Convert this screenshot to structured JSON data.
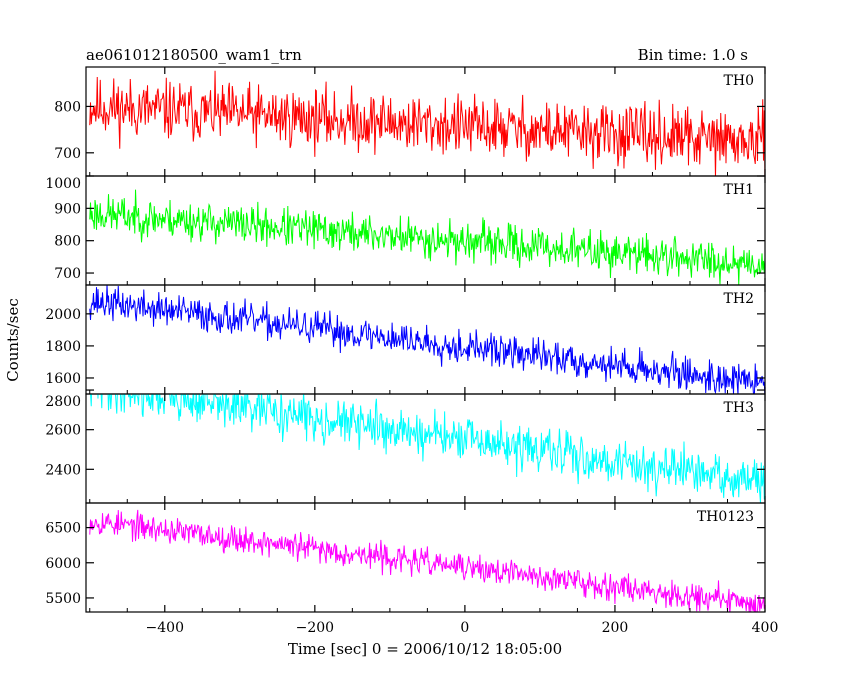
{
  "chart_data": {
    "type": "line",
    "title_left": "ae061012180500_wam1_trn",
    "title_right": "Bin time: 1.0 s",
    "xlabel": "Time [sec] 0 = 2006/10/12 18:05:00",
    "ylabel": "Counts/sec",
    "xlim": [
      -505,
      400
    ],
    "x_ticks": [
      -400,
      -200,
      0,
      200,
      400
    ],
    "x_tick_labels": [
      "−400",
      "−200",
      "0",
      "200",
      "400"
    ],
    "bin_time": 1.0,
    "x_range_data": [
      -500,
      400
    ],
    "series": [
      {
        "name": "TH0",
        "color": "#ff0000",
        "ylim": [
          650,
          885
        ],
        "y_ticks": [
          700,
          800
        ],
        "y_tick_labels": [
          "700",
          "800"
        ],
        "start": 800,
        "end": 722,
        "noise": 32,
        "seed": 11
      },
      {
        "name": "TH1",
        "color": "#00ff00",
        "ylim": [
          663,
          1000
        ],
        "y_ticks": [
          700,
          800,
          900,
          1000
        ],
        "y_tick_labels": [
          "700",
          "800",
          "900",
          "1000"
        ],
        "start": 885,
        "end": 728,
        "noise": 30,
        "seed": 23
      },
      {
        "name": "TH2",
        "color": "#0000ff",
        "ylim": [
          1500,
          2180
        ],
        "y_ticks": [
          1600,
          1800,
          2000
        ],
        "y_tick_labels": [
          "1600",
          "1800",
          "2000"
        ],
        "start": 2080,
        "end": 1565,
        "noise": 52,
        "seed": 37
      },
      {
        "name": "TH3",
        "color": "#00ffff",
        "ylim": [
          2230,
          2780
        ],
        "y_ticks": [
          2400,
          2600,
          2800
        ],
        "y_tick_labels": [
          "2400",
          "2600",
          "2800"
        ],
        "start": 2820,
        "end": 2330,
        "noise": 55,
        "seed": 41
      },
      {
        "name": "TH0123",
        "color": "#ff00ff",
        "ylim": [
          5300,
          6850
        ],
        "y_ticks": [
          5500,
          6000,
          6500
        ],
        "y_tick_labels": [
          "5500",
          "6000",
          "6500"
        ],
        "start": 6600,
        "end": 5400,
        "noise": 95,
        "seed": 53
      }
    ]
  }
}
